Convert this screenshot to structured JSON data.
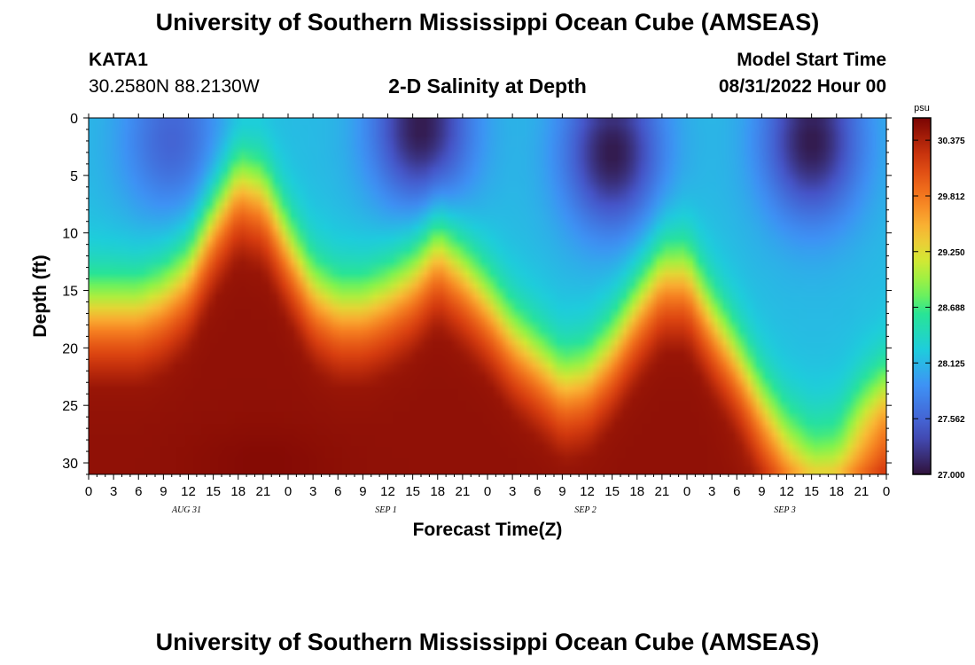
{
  "header": {
    "title": "University of Southern Mississippi Ocean Cube (AMSEAS)",
    "station": "KATA1",
    "coords": "30.2580N  88.2130W",
    "subtitle": "2-D Salinity at Depth",
    "model_start_label": "Model Start Time",
    "model_start_value": "08/31/2022 Hour 00"
  },
  "footer": {
    "title": "University of Southern Mississippi Ocean Cube (AMSEAS)"
  },
  "chart_data": {
    "type": "heatmap",
    "title": "2-D Salinity at Depth",
    "xlabel": "Forecast Time(Z)",
    "ylabel": "Depth (ft)",
    "x_ticks": [
      "0",
      "3",
      "6",
      "9",
      "12",
      "15",
      "18",
      "21",
      "0",
      "3",
      "6",
      "9",
      "12",
      "15",
      "18",
      "21",
      "0",
      "3",
      "6",
      "9",
      "12",
      "15",
      "18",
      "21",
      "0",
      "3",
      "6",
      "9",
      "12",
      "15",
      "18",
      "21",
      "0"
    ],
    "day_labels": [
      "AUG 31",
      "SEP 1",
      "SEP 2",
      "SEP 3"
    ],
    "xlim_hours": [
      0,
      96
    ],
    "y_ticks": [
      0,
      5,
      10,
      15,
      20,
      25,
      30
    ],
    "ylim": [
      0,
      31
    ],
    "y_inverted": true,
    "colorbar": {
      "unit": "psu",
      "ticks": [
        "30.375",
        "29.812",
        "29.250",
        "28.688",
        "28.125",
        "27.562",
        "27.000"
      ],
      "range": [
        27.0,
        30.6
      ]
    },
    "grid": false,
    "halocline_depth_ft": [
      [
        0,
        15.5
      ],
      [
        3,
        15.5
      ],
      [
        6,
        15.5
      ],
      [
        9,
        14.5
      ],
      [
        12,
        12.5
      ],
      [
        15,
        8
      ],
      [
        18,
        4.5
      ],
      [
        21,
        5.5
      ],
      [
        24,
        10
      ],
      [
        27,
        14
      ],
      [
        30,
        15.5
      ],
      [
        33,
        15.5
      ],
      [
        36,
        14.5
      ],
      [
        39,
        13
      ],
      [
        42,
        10.5
      ],
      [
        45,
        12.5
      ],
      [
        48,
        15
      ],
      [
        51,
        18
      ],
      [
        54,
        20
      ],
      [
        57,
        22
      ],
      [
        60,
        21.5
      ],
      [
        63,
        19
      ],
      [
        66,
        15.5
      ],
      [
        69,
        12.5
      ],
      [
        72,
        12.5
      ],
      [
        75,
        16.5
      ],
      [
        78,
        20
      ],
      [
        81,
        24
      ],
      [
        84,
        27
      ],
      [
        87,
        28.5
      ],
      [
        90,
        28
      ],
      [
        93,
        25
      ],
      [
        96,
        23
      ]
    ],
    "surface_fresh_cores": [
      {
        "hour": 10,
        "depth_ft": 2,
        "min_psu": 27.55
      },
      {
        "hour": 40,
        "depth_ft": 1,
        "min_psu": 27.05
      },
      {
        "hour": 63,
        "depth_ft": 3,
        "min_psu": 27.05
      },
      {
        "hour": 87,
        "depth_ft": 2,
        "min_psu": 27.05
      }
    ],
    "bottom_salinity_psu": {
      "max": 30.5,
      "near_hour_21": 30.55,
      "near_hour_58": 30.45,
      "near_hour_90": 29.9
    }
  }
}
